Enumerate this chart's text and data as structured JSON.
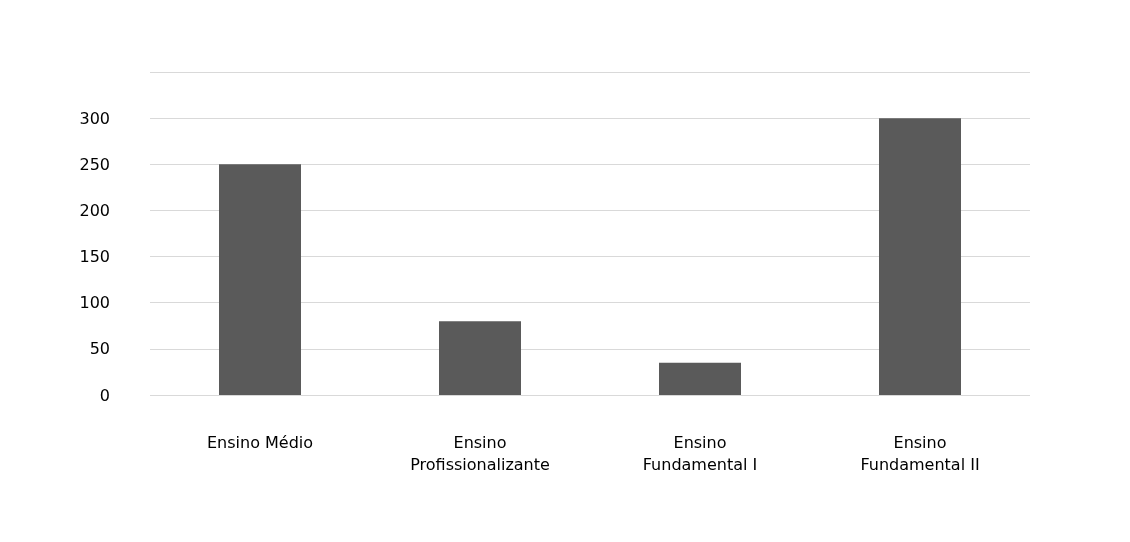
{
  "chart_data": {
    "type": "bar",
    "categories": [
      "Ensino Médio",
      "Ensino\nProfissionalizante",
      "Ensino\nFundamental I",
      "Ensino\nFundamental II"
    ],
    "values": [
      250,
      80,
      35,
      300
    ],
    "color": "#5a5a5a",
    "ylim": [
      0,
      350
    ],
    "yticks": [
      0,
      50,
      100,
      150,
      200,
      250,
      300,
      {
        "value": 350,
        "label": null
      }
    ],
    "grid": true
  }
}
